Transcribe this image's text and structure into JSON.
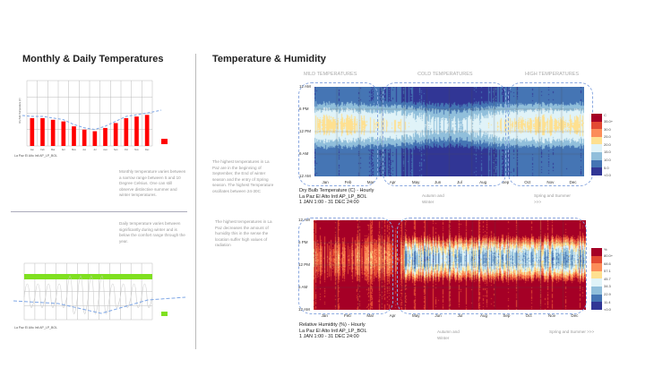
{
  "left": {
    "title": "Monthly  & Daily Temperatures",
    "monthly_note": "Monthly temperature varies between a narrow range between 5 and 10 Degree Celsius. One can still observe distinctive summer and winter temperatures.",
    "daily_note": "Daily temperature varies between significantly during winter and is below the comfort range through the year.",
    "monthly_caption": "La Paz El Alto Intl AP_LP_BOL",
    "daily_caption": "La Paz El Alto Intl AP_LP_BOL",
    "monthly_ylabel": "Dry Bulb Temperature (C)",
    "daily_ylabel": "Dry Bulb Temperature (C)"
  },
  "right": {
    "title": "Temperature & Humidity",
    "seasons": [
      "MILD TEMPERATURES",
      "COLD TEMPERATURES",
      "HIGH TEMPERATURES"
    ],
    "temp_note": "The highest temperatures in La Paz are in the beginning of September, the End of winter season and the entry of Spring season. The highest Temperature oscillates between 24-30C",
    "hum_note": "The highest temperatures in La Paz decreases the amount of humidity this in the sense the location suffer high values of radiation",
    "temp_caption": [
      "Dry Bulb Temperature (C) - Hourly",
      "La Paz El Alto Intl AP_LP_BOL",
      "1 JAN 1:00 - 31 DEC 24:00"
    ],
    "hum_caption": [
      "Relative Humidity (%) - Hourly",
      "La Paz El Alto Intl AP_LP_BOL",
      "1 JAN 1:00 - 31 DEC 24:00"
    ],
    "temp_seg": [
      "Autumn and Winter",
      "Spring and Summer >>>"
    ],
    "hum_seg": [
      "Autumn and Winter",
      "Spring and Summer >>>"
    ],
    "hours": [
      "12 AM",
      "6 PM",
      "12 PM",
      "6 AM",
      "12 AM"
    ],
    "months": [
      "Jan",
      "Feb",
      "Mar",
      "Apr",
      "May",
      "Jun",
      "Jul",
      "Aug",
      "Sep",
      "Oct",
      "Nov",
      "Dec"
    ],
    "temp_legend": {
      "unit": "C",
      "values": [
        "35.0+",
        "30.0",
        "25.0",
        "20.0",
        "15.0",
        "10.0",
        "5.0",
        "<0.0"
      ],
      "colors": [
        "#a50026",
        "#e34a33",
        "#fc8d59",
        "#fee090",
        "#e0f3f8",
        "#91bfdb",
        "#4575b4",
        "#313695"
      ]
    },
    "hum_legend": {
      "unit": "%",
      "values": [
        "80.0+",
        "68.6",
        "57.1",
        "45.7",
        "34.3",
        "22.9",
        "11.4",
        "<0.0"
      ],
      "colors": [
        "#a50026",
        "#e34a33",
        "#fc8d59",
        "#fee090",
        "#e0f3f8",
        "#91bfdb",
        "#4575b4",
        "#313695"
      ]
    }
  },
  "chart_data": [
    {
      "type": "bar",
      "categories": [
        "Jan",
        "Feb",
        "Mar",
        "Apr",
        "May",
        "Jun",
        "Jul",
        "Aug",
        "Sep",
        "Oct",
        "Nov",
        "Dec"
      ],
      "values": [
        8.5,
        8.5,
        8,
        7.5,
        6,
        5,
        4.5,
        5.5,
        7,
        8.5,
        9,
        9.5
      ],
      "ylim": [
        0,
        20
      ],
      "ylabel": "Dry Bulb Temperature (C)"
    }
  ]
}
